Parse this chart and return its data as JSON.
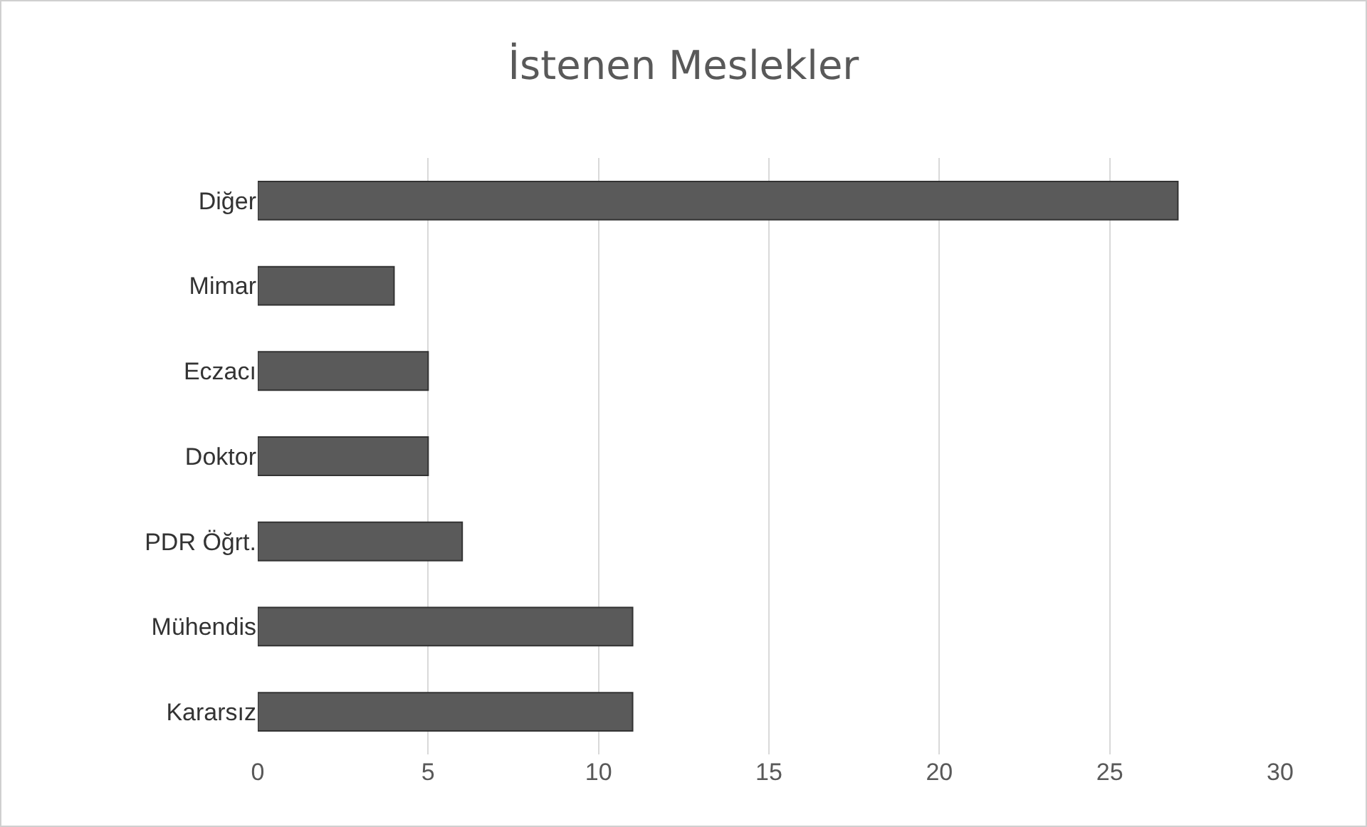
{
  "chart_data": {
    "type": "bar",
    "title": "İstenen Meslekler",
    "orientation": "horizontal",
    "categories": [
      "Diğer",
      "Mimar",
      "Eczacı",
      "Doktor",
      "PDR Öğrt.",
      "Mühendis",
      "Kararsız"
    ],
    "values": [
      27,
      4,
      5,
      5,
      6,
      11,
      11
    ],
    "color": "#5a5a5a",
    "xlim": [
      0,
      30
    ],
    "xticks": [
      0,
      5,
      10,
      15,
      20,
      25,
      30
    ],
    "grid": "x"
  }
}
